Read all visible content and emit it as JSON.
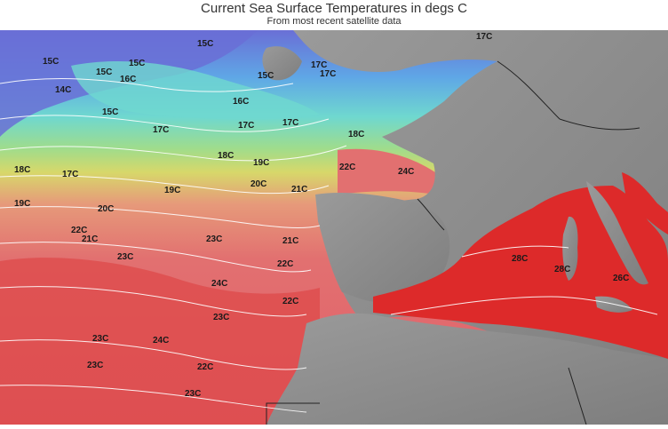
{
  "header": {
    "title": "Current Sea Surface Temperatures in degs C",
    "subtitle": "From most recent satellite data"
  },
  "colors": {
    "land": "#8a8a8a",
    "coldest": "#6a6fd6",
    "cold": "#5fa7e6",
    "cool": "#6fd8cf",
    "mild": "#9fdc8c",
    "warm": "#d7d86a",
    "warmer": "#e69a7a",
    "hot": "#e27070",
    "hottest": "#dd2a2a",
    "contour": "#ffffff"
  },
  "labels": [
    {
      "id": "l-15c-a",
      "text": "15C"
    },
    {
      "id": "l-15c-b",
      "text": "15C"
    },
    {
      "id": "l-15c-c",
      "text": "15C"
    },
    {
      "id": "l-14c-a",
      "text": "14C"
    },
    {
      "id": "l-15c-d",
      "text": "15C"
    },
    {
      "id": "l-16c-a",
      "text": "16C"
    },
    {
      "id": "l-15c-e",
      "text": "15C"
    },
    {
      "id": "l-15c-f",
      "text": "15C"
    },
    {
      "id": "l-17c-a",
      "text": "17C"
    },
    {
      "id": "l-17c-b",
      "text": "17C"
    },
    {
      "id": "l-17c-c",
      "text": "17C"
    },
    {
      "id": "l-16c-b",
      "text": "16C"
    },
    {
      "id": "l-17c-d",
      "text": "17C"
    },
    {
      "id": "l-17c-e",
      "text": "17C"
    },
    {
      "id": "l-18c-a",
      "text": "18C"
    },
    {
      "id": "l-17c-f",
      "text": "17C"
    },
    {
      "id": "l-18c-b",
      "text": "18C"
    },
    {
      "id": "l-18c-c",
      "text": "18C"
    },
    {
      "id": "l-19c-a",
      "text": "19C"
    },
    {
      "id": "l-19c-b",
      "text": "19C"
    },
    {
      "id": "l-19c-c",
      "text": "19C"
    },
    {
      "id": "l-20c-a",
      "text": "20C"
    },
    {
      "id": "l-20c-b",
      "text": "20C"
    },
    {
      "id": "l-21c-a",
      "text": "21C"
    },
    {
      "id": "l-22c-a",
      "text": "22C"
    },
    {
      "id": "l-24c-a",
      "text": "24C"
    },
    {
      "id": "l-22c-b",
      "text": "22C"
    },
    {
      "id": "l-21c-b",
      "text": "21C"
    },
    {
      "id": "l-23c-a",
      "text": "23C"
    },
    {
      "id": "l-21c-c",
      "text": "21C"
    },
    {
      "id": "l-22c-c",
      "text": "22C"
    },
    {
      "id": "l-23c-b",
      "text": "23C"
    },
    {
      "id": "l-24c-b",
      "text": "24C"
    },
    {
      "id": "l-23c-c",
      "text": "23C"
    },
    {
      "id": "l-22c-d",
      "text": "22C"
    },
    {
      "id": "l-23c-d",
      "text": "23C"
    },
    {
      "id": "l-24c-c",
      "text": "24C"
    },
    {
      "id": "l-22c-e",
      "text": "22C"
    },
    {
      "id": "l-23c-e",
      "text": "23C"
    },
    {
      "id": "l-23c-f",
      "text": "23C"
    },
    {
      "id": "l-28c-a",
      "text": "28C"
    },
    {
      "id": "l-28c-b",
      "text": "28C"
    },
    {
      "id": "l-26c-a",
      "text": "26C"
    },
    {
      "id": "l-17c-g",
      "text": "17C"
    }
  ]
}
